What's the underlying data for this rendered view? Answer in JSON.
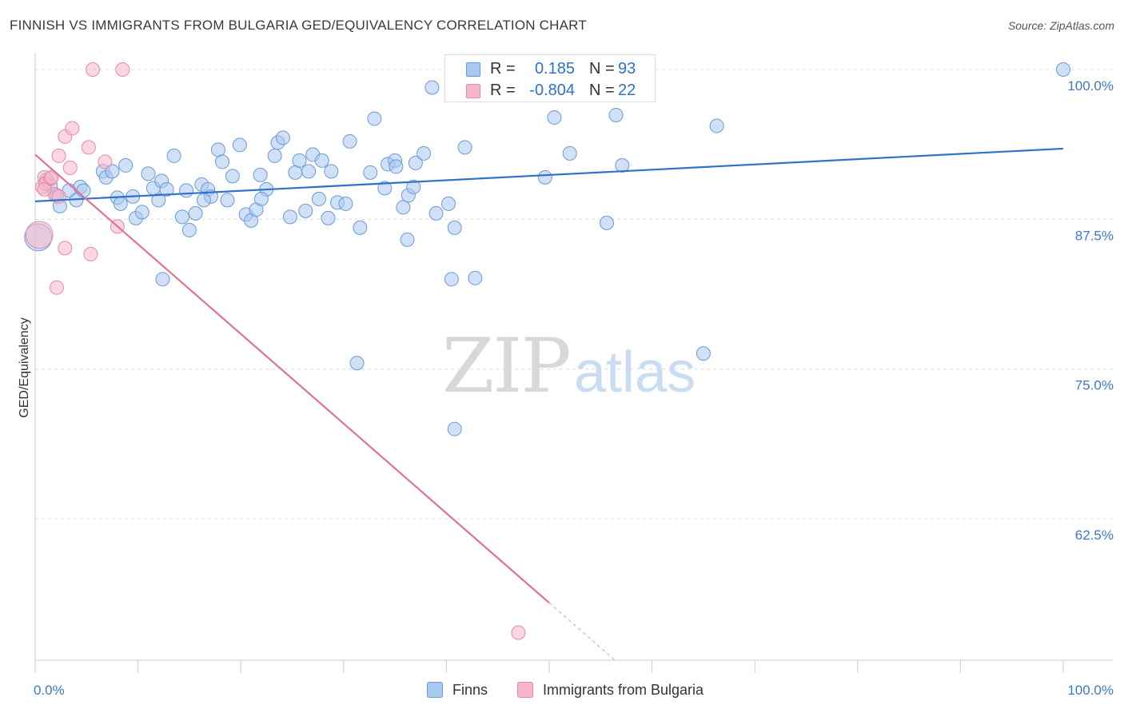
{
  "header": {
    "title": "FINNISH VS IMMIGRANTS FROM BULGARIA GED/EQUIVALENCY CORRELATION CHART",
    "source": "Source: ZipAtlas.com"
  },
  "legend": {
    "r_label": "R =",
    "n_label": "N =",
    "items": [
      {
        "r": "0.185",
        "n": "93"
      },
      {
        "r": "-0.804",
        "n": "22"
      }
    ]
  },
  "bottom_legend": [
    "Finns",
    "Immigrants from Bulgaria"
  ],
  "colors": {
    "blue_fill": "#a9c8f0",
    "blue_stroke": "#6a9ad8",
    "blue_line": "#2e72c9",
    "pink_fill": "#f6b6c8",
    "pink_stroke": "#e48aa6",
    "pink_line": "#e0709a",
    "tick_label": "#3d78c9",
    "grid": "#dddddd"
  },
  "chart_data": {
    "type": "scatter",
    "title": "FINNISH VS IMMIGRANTS FROM BULGARIA GED/EQUIVALENCY CORRELATION CHART",
    "xlabel": "",
    "ylabel": "GED/Equivalency",
    "xlim": [
      0,
      100
    ],
    "ylim": [
      50.7,
      101.4
    ],
    "x_tick_labels": [
      "0.0%",
      "100.0%"
    ],
    "y_ticks": [
      100,
      87.5,
      75,
      62.5
    ],
    "y_tick_labels": [
      "100.0%",
      "87.5%",
      "75.0%",
      "62.5%"
    ],
    "grid": true,
    "watermark": {
      "zip": "ZIP",
      "atlas": "atlas"
    },
    "series": [
      {
        "name": "Finns",
        "r": 0.185,
        "n": 93,
        "trend": {
          "x0": 0,
          "y0": 89.0,
          "x1": 100,
          "y1": 93.4,
          "dashed_from": null
        },
        "points": [
          [
            0.3,
            86.0,
            "large"
          ],
          [
            1.5,
            90.3
          ],
          [
            2.1,
            89.5
          ],
          [
            2.4,
            88.6
          ],
          [
            1.1,
            90.8
          ],
          [
            3.3,
            89.9
          ],
          [
            4.0,
            89.1
          ],
          [
            4.4,
            90.2
          ],
          [
            4.7,
            89.9
          ],
          [
            6.6,
            91.5
          ],
          [
            6.9,
            91.0
          ],
          [
            7.5,
            91.5
          ],
          [
            8.0,
            89.3
          ],
          [
            8.3,
            88.8
          ],
          [
            8.8,
            92.0
          ],
          [
            9.5,
            89.4
          ],
          [
            9.8,
            87.6
          ],
          [
            10.4,
            88.1
          ],
          [
            11.0,
            91.3
          ],
          [
            11.5,
            90.1
          ],
          [
            12.0,
            89.1
          ],
          [
            12.3,
            90.7
          ],
          [
            12.8,
            90.0
          ],
          [
            13.5,
            92.8
          ],
          [
            14.3,
            87.7
          ],
          [
            14.7,
            89.9
          ],
          [
            15.0,
            86.6
          ],
          [
            15.6,
            88.0
          ],
          [
            16.2,
            90.4
          ],
          [
            16.8,
            90.0
          ],
          [
            17.1,
            89.4
          ],
          [
            17.8,
            93.3
          ],
          [
            18.2,
            92.3
          ],
          [
            18.7,
            89.1
          ],
          [
            19.2,
            91.1
          ],
          [
            19.9,
            93.7
          ],
          [
            20.5,
            87.9
          ],
          [
            21.0,
            87.4
          ],
          [
            21.5,
            88.3
          ],
          [
            21.9,
            91.2
          ],
          [
            22.5,
            90.0
          ],
          [
            23.3,
            92.8
          ],
          [
            23.6,
            93.9
          ],
          [
            24.1,
            94.3
          ],
          [
            24.8,
            87.7
          ],
          [
            25.3,
            91.4
          ],
          [
            25.7,
            92.4
          ],
          [
            26.3,
            88.2
          ],
          [
            26.6,
            91.5
          ],
          [
            27.0,
            92.9
          ],
          [
            27.6,
            89.2
          ],
          [
            27.9,
            92.4
          ],
          [
            28.5,
            87.6
          ],
          [
            28.8,
            91.5
          ],
          [
            29.4,
            88.9
          ],
          [
            30.2,
            88.8
          ],
          [
            30.6,
            94.0
          ],
          [
            31.6,
            86.8
          ],
          [
            32.6,
            91.4
          ],
          [
            33.0,
            95.9
          ],
          [
            34.0,
            90.1
          ],
          [
            34.3,
            92.1
          ],
          [
            35.0,
            92.4
          ],
          [
            35.1,
            91.9
          ],
          [
            35.8,
            88.5
          ],
          [
            36.3,
            89.5
          ],
          [
            36.8,
            90.2
          ],
          [
            36.2,
            85.8
          ],
          [
            37.0,
            92.2
          ],
          [
            37.8,
            93.0
          ],
          [
            38.6,
            98.5
          ],
          [
            39.0,
            88.0
          ],
          [
            40.2,
            88.8
          ],
          [
            40.5,
            82.5
          ],
          [
            40.8,
            86.8
          ],
          [
            41.8,
            93.5
          ],
          [
            31.3,
            75.5
          ],
          [
            40.8,
            70.0
          ],
          [
            42.8,
            82.6
          ],
          [
            49.6,
            91.0
          ],
          [
            50.5,
            96.0
          ],
          [
            52.0,
            93.0
          ],
          [
            53.8,
            100.0
          ],
          [
            55.6,
            87.2
          ],
          [
            56.5,
            96.2
          ],
          [
            57.1,
            92.0
          ],
          [
            55.8,
            100.0
          ],
          [
            66.3,
            95.3
          ],
          [
            100.0,
            100.0
          ],
          [
            65.0,
            76.3
          ],
          [
            12.4,
            82.5
          ],
          [
            16.4,
            89.1
          ],
          [
            22.0,
            89.2
          ]
        ]
      },
      {
        "name": "Immigrants from Bulgaria",
        "r": -0.804,
        "n": 22,
        "trend": {
          "x0": 0,
          "y0": 92.9,
          "x1": 56.4,
          "y1": 50.7,
          "dashed_from": 50.0
        },
        "points": [
          [
            0.4,
            86.2,
            "large"
          ],
          [
            0.7,
            90.2
          ],
          [
            0.9,
            91.0
          ],
          [
            1.0,
            90.5
          ],
          [
            1.5,
            90.9
          ],
          [
            1.9,
            89.6
          ],
          [
            2.3,
            89.4
          ],
          [
            2.3,
            92.8
          ],
          [
            2.9,
            94.4
          ],
          [
            3.4,
            91.8
          ],
          [
            3.6,
            95.1
          ],
          [
            2.9,
            85.1
          ],
          [
            2.1,
            81.8
          ],
          [
            5.2,
            93.5
          ],
          [
            5.4,
            84.6
          ],
          [
            6.8,
            92.3
          ],
          [
            8.0,
            86.9
          ],
          [
            5.6,
            100.0
          ],
          [
            8.5,
            100.0
          ],
          [
            47.0,
            53.0
          ],
          [
            0.9,
            90.0
          ],
          [
            1.6,
            91.0
          ]
        ]
      }
    ]
  }
}
